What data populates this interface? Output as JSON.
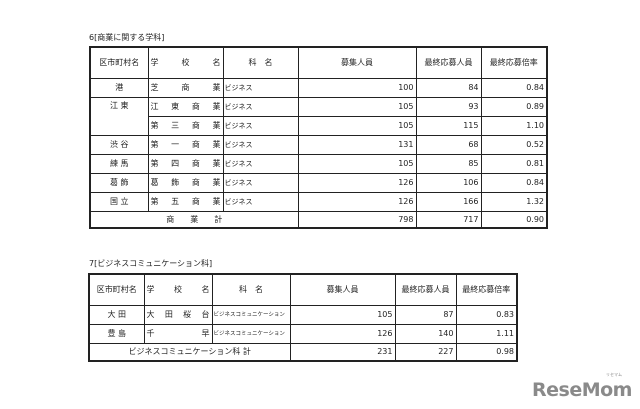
{
  "section1": {
    "title": "6[商業に関する学科]",
    "headers": [
      "区市町村名",
      "学",
      "校",
      "名",
      "科　名",
      "募集人員",
      "最終応募人員",
      "最終応募倍率"
    ],
    "rows": [
      {
        "ward": "港",
        "school": [
          "芝",
          "商",
          "業"
        ],
        "dept": "ビジネス",
        "capacity": "100",
        "applicants": "84",
        "ratio": "0.84"
      },
      {
        "ward": "江 東",
        "school": [
          "江",
          "東",
          "商",
          "業"
        ],
        "dept": "ビジネス",
        "capacity": "105",
        "applicants": "93",
        "ratio": "0.89"
      },
      {
        "ward": "",
        "school": [
          "第",
          "三",
          "商",
          "業"
        ],
        "dept": "ビジネス",
        "capacity": "105",
        "applicants": "115",
        "ratio": "1.10"
      },
      {
        "ward": "渋 谷",
        "school": [
          "第",
          "一",
          "商",
          "業"
        ],
        "dept": "ビジネス",
        "capacity": "131",
        "applicants": "68",
        "ratio": "0.52"
      },
      {
        "ward": "練 馬",
        "school": [
          "第",
          "四",
          "商",
          "業"
        ],
        "dept": "ビジネス",
        "capacity": "105",
        "applicants": "85",
        "ratio": "0.81"
      },
      {
        "ward": "葛 飾",
        "school": [
          "葛",
          "飾",
          "商",
          "業"
        ],
        "dept": "ビジネス",
        "capacity": "126",
        "applicants": "106",
        "ratio": "0.84"
      },
      {
        "ward": "国 立",
        "school": [
          "第",
          "五",
          "商",
          "業"
        ],
        "dept": "ビジネス",
        "capacity": "126",
        "applicants": "166",
        "ratio": "1.32"
      }
    ],
    "total": {
      "label": "商　　業　　計",
      "capacity": "798",
      "applicants": "717",
      "ratio": "0.90"
    }
  },
  "section2": {
    "title": "7[ビジネスコミュニケーション科]",
    "headers": [
      "区市町村名",
      "学",
      "校",
      "名",
      "科　名",
      "募集人員",
      "最終応募人員",
      "最終応募倍率"
    ],
    "rows": [
      {
        "ward": "大 田",
        "school": [
          "大",
          "田",
          "桜",
          "台"
        ],
        "dept": "ビジネスコミュニケーション",
        "capacity": "105",
        "applicants": "87",
        "ratio": "0.83"
      },
      {
        "ward": "豊 島",
        "school": [
          "千",
          "早"
        ],
        "dept": "ビジネスコミュニケーション",
        "capacity": "126",
        "applicants": "140",
        "ratio": "1.11"
      }
    ],
    "total": {
      "label": "ビジネスコミュニケーション科 計",
      "capacity": "231",
      "applicants": "227",
      "ratio": "0.98"
    }
  },
  "logo": {
    "text": "ReseMom",
    "ruby": "リセマム"
  }
}
